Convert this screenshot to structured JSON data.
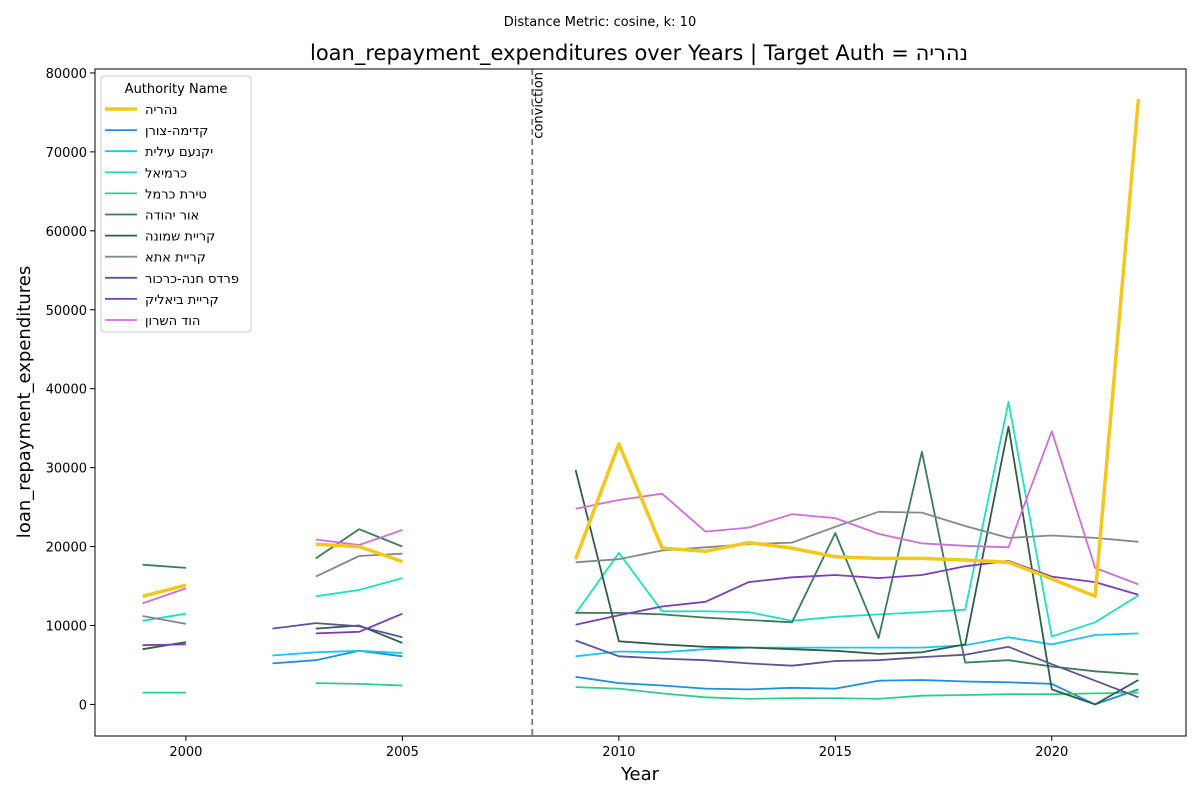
{
  "suptitle": "Distance Metric: cosine, k: 10",
  "chart_data": {
    "type": "line",
    "title": "loan_repayment_expenditures over Years | Target Auth = נהריה",
    "xlabel": "Year",
    "ylabel": "loan_repayment_expenditures",
    "xlim": [
      1997.9,
      2023.1
    ],
    "ylim": [
      -4000,
      80500
    ],
    "x_ticks": [
      2000,
      2005,
      2010,
      2015,
      2020
    ],
    "y_ticks": [
      0,
      10000,
      20000,
      30000,
      40000,
      50000,
      60000,
      70000,
      80000
    ],
    "legend_title": "Authority Name",
    "legend_position": "upper left",
    "vertical_line": {
      "x": 2008,
      "label": "conviction",
      "color": "#777777"
    },
    "series": [
      {
        "name": "נהריה",
        "color": "#f2c81e",
        "width": 3.5,
        "target": true,
        "points": [
          [
            1999,
            13700
          ],
          [
            2000,
            15100
          ],
          null,
          [
            2003,
            20300
          ],
          [
            2004,
            20000
          ],
          [
            2005,
            18100
          ],
          null,
          [
            2009,
            18400
          ],
          [
            2010,
            33000
          ],
          [
            2011,
            19800
          ],
          [
            2012,
            19400
          ],
          [
            2013,
            20500
          ],
          [
            2014,
            19800
          ],
          [
            2015,
            18700
          ],
          [
            2016,
            18500
          ],
          [
            2017,
            18500
          ],
          [
            2018,
            18300
          ],
          [
            2019,
            18000
          ],
          [
            2020,
            15900
          ],
          [
            2021,
            13700
          ],
          [
            2022,
            76700
          ]
        ]
      },
      {
        "name": "קדימה-צורן",
        "color": "#1f8fe0",
        "width": 1.8,
        "points": [
          [
            2002,
            5200
          ],
          [
            2003,
            5600
          ],
          [
            2004,
            6800
          ],
          [
            2005,
            6100
          ],
          null,
          [
            2009,
            3500
          ],
          [
            2010,
            2700
          ],
          [
            2011,
            2400
          ],
          [
            2012,
            2000
          ],
          [
            2013,
            1900
          ],
          [
            2014,
            2100
          ],
          [
            2015,
            2000
          ],
          [
            2016,
            3000
          ],
          [
            2017,
            3100
          ],
          [
            2018,
            2900
          ],
          [
            2019,
            2800
          ],
          [
            2020,
            2600
          ],
          [
            2021,
            0
          ],
          [
            2022,
            1900
          ]
        ]
      },
      {
        "name": "יקנעם עילית",
        "color": "#20c3f0",
        "width": 1.8,
        "points": [
          [
            2002,
            6200
          ],
          [
            2003,
            6600
          ],
          [
            2004,
            6800
          ],
          [
            2005,
            6500
          ],
          null,
          [
            2009,
            6100
          ],
          [
            2010,
            6700
          ],
          [
            2011,
            6600
          ],
          [
            2012,
            7000
          ],
          [
            2013,
            7200
          ],
          [
            2014,
            7200
          ],
          [
            2015,
            7200
          ],
          [
            2016,
            7200
          ],
          [
            2017,
            7200
          ],
          [
            2018,
            7500
          ],
          [
            2019,
            8500
          ],
          [
            2020,
            7600
          ],
          [
            2021,
            8800
          ],
          [
            2022,
            9000
          ]
        ]
      },
      {
        "name": "כרמיאל",
        "color": "#1fe0c0",
        "width": 1.8,
        "points": [
          [
            1999,
            10600
          ],
          [
            2000,
            11500
          ],
          null,
          [
            2003,
            13700
          ],
          [
            2004,
            14500
          ],
          [
            2005,
            16000
          ],
          null,
          [
            2009,
            11500
          ],
          [
            2010,
            19200
          ],
          [
            2011,
            11800
          ],
          [
            2012,
            11800
          ],
          [
            2013,
            11700
          ],
          [
            2014,
            10600
          ],
          [
            2015,
            11100
          ],
          [
            2016,
            11400
          ],
          [
            2017,
            11700
          ],
          [
            2018,
            12000
          ],
          [
            2019,
            38300
          ],
          [
            2020,
            8600
          ],
          [
            2021,
            10400
          ],
          [
            2022,
            13800
          ]
        ]
      },
      {
        "name": "טירת כרמל",
        "color": "#2ecf8a",
        "width": 1.8,
        "points": [
          [
            1999,
            1500
          ],
          [
            2000,
            1500
          ],
          null,
          [
            2003,
            2700
          ],
          [
            2004,
            2600
          ],
          [
            2005,
            2400
          ],
          null,
          [
            2009,
            2200
          ],
          [
            2010,
            2000
          ],
          [
            2011,
            1400
          ],
          [
            2012,
            900
          ],
          [
            2013,
            700
          ],
          [
            2014,
            800
          ],
          [
            2015,
            800
          ],
          [
            2016,
            700
          ],
          [
            2017,
            1100
          ],
          [
            2018,
            1200
          ],
          [
            2019,
            1300
          ],
          [
            2020,
            1300
          ],
          [
            2021,
            1400
          ],
          [
            2022,
            1500
          ]
        ]
      },
      {
        "name": "אור יהודה",
        "color": "#3d7a5a",
        "width": 1.8,
        "points": [
          [
            1999,
            17700
          ],
          [
            2000,
            17300
          ],
          null,
          [
            2003,
            18500
          ],
          [
            2004,
            22200
          ],
          [
            2005,
            20000
          ],
          null,
          [
            2009,
            11600
          ],
          [
            2010,
            11600
          ],
          [
            2011,
            11400
          ],
          [
            2012,
            11000
          ],
          [
            2013,
            10700
          ],
          [
            2014,
            10400
          ],
          [
            2015,
            21700
          ],
          [
            2016,
            8400
          ],
          [
            2017,
            32000
          ],
          [
            2018,
            5300
          ],
          [
            2019,
            5600
          ],
          [
            2020,
            4800
          ],
          [
            2021,
            4200
          ],
          [
            2022,
            3800
          ]
        ]
      },
      {
        "name": "קריית שמונה",
        "color": "#2f5e45",
        "width": 1.8,
        "points": [
          [
            1999,
            7000
          ],
          [
            2000,
            7900
          ],
          null,
          [
            2003,
            9600
          ],
          [
            2004,
            10000
          ],
          [
            2005,
            7800
          ],
          null,
          [
            2009,
            29700
          ],
          [
            2010,
            8000
          ],
          [
            2011,
            7600
          ],
          [
            2012,
            7300
          ],
          [
            2013,
            7200
          ],
          [
            2014,
            7000
          ],
          [
            2015,
            6800
          ],
          [
            2016,
            6400
          ],
          [
            2017,
            6600
          ],
          [
            2018,
            7600
          ],
          [
            2019,
            35200
          ],
          [
            2020,
            1900
          ],
          [
            2021,
            0
          ],
          [
            2022,
            3100
          ]
        ]
      },
      {
        "name": "קריית אתא",
        "color": "#7f8c86",
        "width": 1.8,
        "points": [
          [
            1999,
            11200
          ],
          [
            2000,
            10200
          ],
          null,
          [
            2003,
            16200
          ],
          [
            2004,
            18800
          ],
          [
            2005,
            19100
          ],
          null,
          [
            2009,
            18000
          ],
          [
            2010,
            18400
          ],
          [
            2011,
            19500
          ],
          [
            2012,
            19900
          ],
          [
            2013,
            20300
          ],
          [
            2014,
            20500
          ],
          [
            2015,
            22500
          ],
          [
            2016,
            24400
          ],
          [
            2017,
            24300
          ],
          [
            2018,
            22600
          ],
          [
            2019,
            21100
          ],
          [
            2020,
            21400
          ],
          [
            2021,
            21100
          ],
          [
            2022,
            20600
          ]
        ]
      },
      {
        "name": "פרדס חנה-כרכור",
        "color": "#5a5596",
        "width": 1.8,
        "points": [
          [
            2002,
            9600
          ],
          [
            2003,
            10300
          ],
          [
            2004,
            9900
          ],
          [
            2005,
            8500
          ],
          null,
          [
            2009,
            8100
          ],
          [
            2010,
            6100
          ],
          [
            2011,
            5800
          ],
          [
            2012,
            5600
          ],
          [
            2013,
            5200
          ],
          [
            2014,
            4900
          ],
          [
            2015,
            5500
          ],
          [
            2016,
            5600
          ],
          [
            2017,
            6000
          ],
          [
            2018,
            6300
          ],
          [
            2019,
            7300
          ],
          [
            2020,
            5100
          ],
          [
            2021,
            3000
          ],
          [
            2022,
            900
          ]
        ]
      },
      {
        "name": "קריית ביאליק",
        "color": "#7a3fb0",
        "width": 1.8,
        "points": [
          [
            1999,
            7500
          ],
          [
            2000,
            7600
          ],
          null,
          [
            2003,
            9000
          ],
          [
            2004,
            9200
          ],
          [
            2005,
            11500
          ],
          null,
          [
            2009,
            10100
          ],
          [
            2010,
            11300
          ],
          [
            2011,
            12400
          ],
          [
            2012,
            13000
          ],
          [
            2013,
            15500
          ],
          [
            2014,
            16100
          ],
          [
            2015,
            16400
          ],
          [
            2016,
            16000
          ],
          [
            2017,
            16400
          ],
          [
            2018,
            17500
          ],
          [
            2019,
            18200
          ],
          [
            2020,
            16200
          ],
          [
            2021,
            15500
          ],
          [
            2022,
            13900
          ]
        ]
      },
      {
        "name": "הוד השרון",
        "color": "#cc70d8",
        "width": 1.8,
        "points": [
          [
            1999,
            12800
          ],
          [
            2000,
            14700
          ],
          null,
          [
            2003,
            20900
          ],
          [
            2004,
            20200
          ],
          [
            2005,
            22100
          ],
          null,
          [
            2009,
            24800
          ],
          [
            2010,
            25900
          ],
          [
            2011,
            26700
          ],
          [
            2012,
            21900
          ],
          [
            2013,
            22400
          ],
          [
            2014,
            24100
          ],
          [
            2015,
            23600
          ],
          [
            2016,
            21600
          ],
          [
            2017,
            20400
          ],
          [
            2018,
            20100
          ],
          [
            2019,
            19900
          ],
          [
            2020,
            34600
          ],
          [
            2021,
            17300
          ],
          [
            2022,
            15200
          ]
        ]
      }
    ]
  }
}
